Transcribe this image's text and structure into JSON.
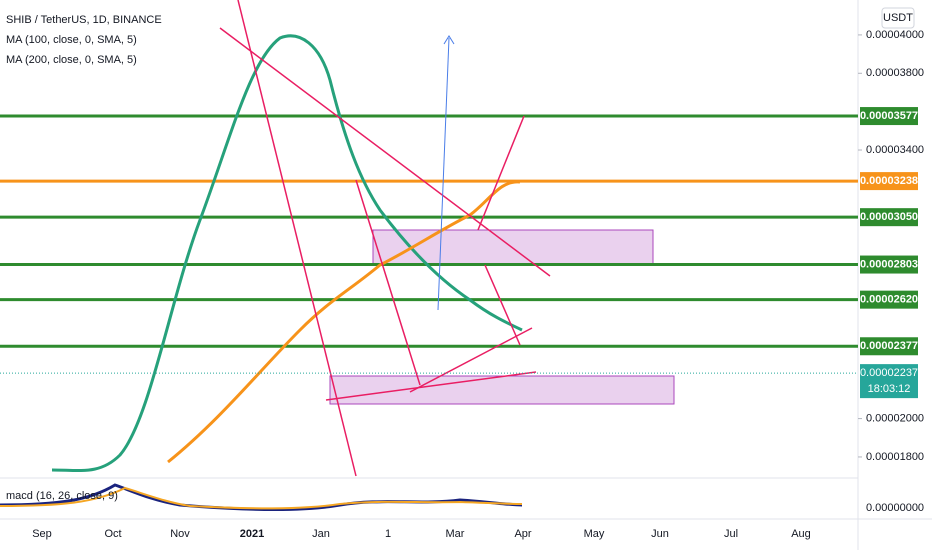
{
  "header": {
    "symbol": "SHIB / TetherUS, 1D, BINANCE",
    "ma1": "MA (100, close, 0, SMA, 5)",
    "ma2": "MA (200, close, 0, SMA, 5)",
    "macd": "macd (16, 26, close, 9)",
    "currency": "USDT"
  },
  "price_axis": {
    "ylim": [
      1.732e-05,
      4.182e-05
    ],
    "ticks": [
      {
        "value": 4e-05,
        "label": "0.00004000"
      },
      {
        "value": 3.8e-05,
        "label": "0.00003800"
      },
      {
        "value": 3.4e-05,
        "label": "0.00003400"
      },
      {
        "value": 2e-05,
        "label": "0.00002000"
      },
      {
        "value": 1.8e-05,
        "label": "0.00001800"
      }
    ]
  },
  "macd_axis_label": "0.00000000",
  "levels": [
    {
      "value": 3.577e-05,
      "label": "0.00003577",
      "color": "#2e8b2e"
    },
    {
      "value": 3.238e-05,
      "label": "0.00003238",
      "color": "#f7931a"
    },
    {
      "value": 3.05e-05,
      "label": "0.00003050",
      "color": "#2e8b2e"
    },
    {
      "value": 2.803e-05,
      "label": "0.00002803",
      "color": "#2e8b2e"
    },
    {
      "value": 2.62e-05,
      "label": "0.00002620",
      "color": "#2e8b2e"
    },
    {
      "value": 2.377e-05,
      "label": "0.00002377",
      "color": "#2e8b2e"
    }
  ],
  "last_price": {
    "value": 2.237e-05,
    "label": "0.00002237",
    "countdown": "18:03:12",
    "color": "#26a69a"
  },
  "time_axis": [
    "Sep",
    "Oct",
    "Nov",
    "2021",
    "Jan",
    "1",
    "Mar",
    "Apr",
    "May",
    "Jun",
    "Jul",
    "Aug"
  ]
}
